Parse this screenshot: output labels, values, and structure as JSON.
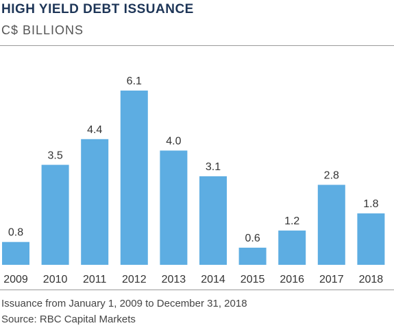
{
  "chart_data": {
    "type": "bar",
    "title": "HIGH YIELD DEBT ISSUANCE",
    "subtitle": "C$ BILLIONS",
    "categories": [
      "2009",
      "2010",
      "2011",
      "2012",
      "2013",
      "2014",
      "2015",
      "2016",
      "2017",
      "2018"
    ],
    "values": [
      0.8,
      3.5,
      4.4,
      6.1,
      4.0,
      3.1,
      0.6,
      1.2,
      2.8,
      1.8
    ],
    "value_labels": [
      "0.8",
      "3.5",
      "4.4",
      "6.1",
      "4.0",
      "3.1",
      "0.6",
      "1.2",
      "2.8",
      "1.8"
    ],
    "xlabel": "",
    "ylabel": "",
    "ylim": [
      0,
      6.1
    ],
    "grid": false,
    "legend": "none",
    "bar_color": "#5dade2"
  },
  "footnote": "Issuance from January 1, 2009 to December 31, 2018",
  "source": "Source: RBC Capital Markets"
}
